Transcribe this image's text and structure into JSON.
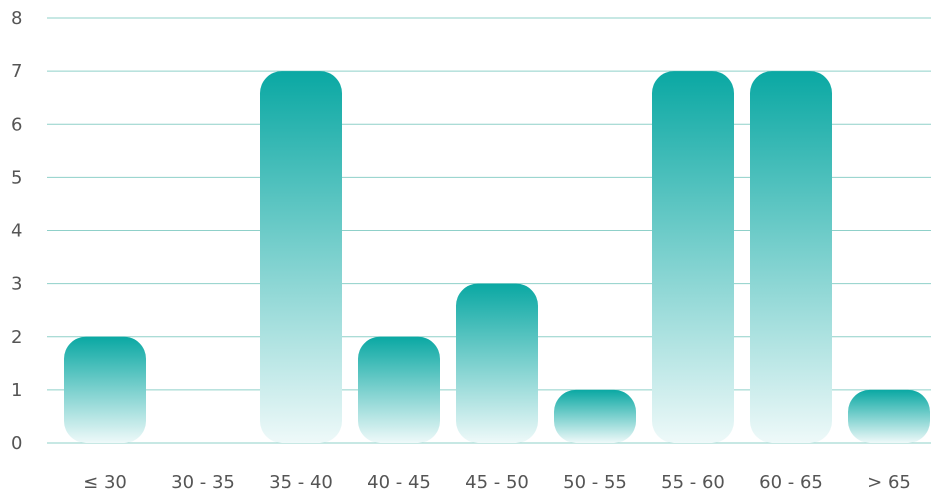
{
  "chart_data": {
    "type": "bar",
    "categories": [
      "≤ 30",
      "30 - 35",
      "35 - 40",
      "40 - 45",
      "45 - 50",
      "50 - 55",
      "55 - 60",
      "60 - 65",
      "> 65"
    ],
    "values": [
      2,
      0,
      7,
      2,
      3,
      1,
      7,
      7,
      1
    ],
    "title": "",
    "xlabel": "",
    "ylabel": "",
    "ylim": [
      0,
      8
    ],
    "yticks": [
      "0",
      "1",
      "2",
      "3",
      "4",
      "5",
      "6",
      "7",
      "8"
    ],
    "grid": true,
    "legend": "none"
  },
  "colors": {
    "bar_top": "#0aa8a3",
    "bar_bottom": "#eef9f9",
    "gridline": "#8fd0c9",
    "text": "#555555"
  }
}
